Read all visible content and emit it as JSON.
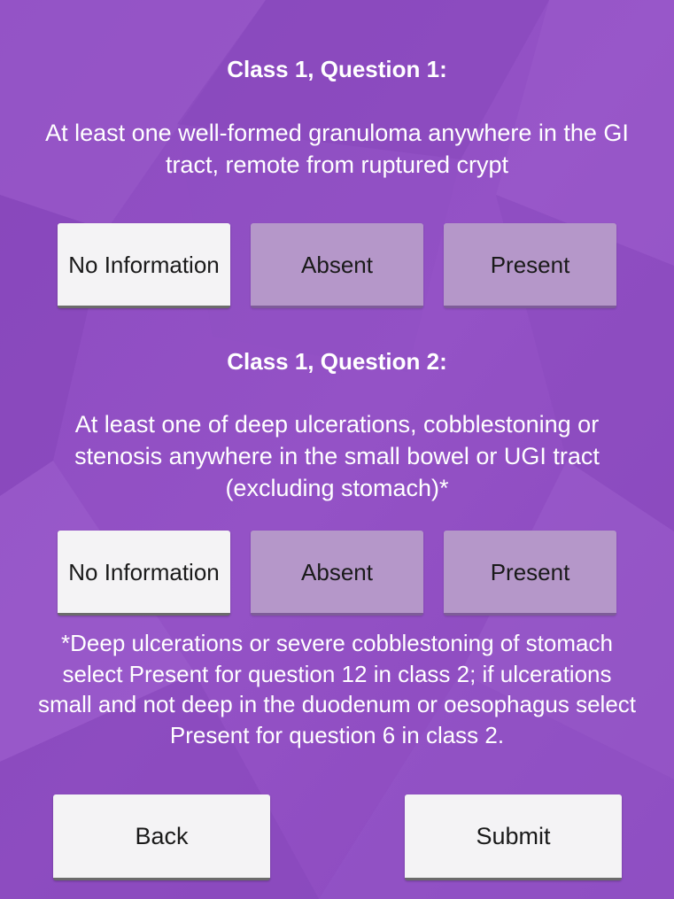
{
  "question1": {
    "title": "Class 1, Question 1:",
    "text": "At least one well-formed granuloma anywhere in the GI tract, remote from ruptured crypt",
    "options": {
      "no_information": "No Information",
      "absent": "Absent",
      "present": "Present"
    },
    "selected": "no_information"
  },
  "question2": {
    "title": "Class 1, Question 2:",
    "text": "At least one of deep ulcerations, cobblestoning or stenosis anywhere in the small bowel or UGI tract (excluding stomach)*",
    "options": {
      "no_information": "No Information",
      "absent": "Absent",
      "present": "Present"
    },
    "selected": "no_information"
  },
  "footnote": "*Deep ulcerations or severe cobblestoning of stomach select Present for question 12 in class 2; if ulcerations small and not deep in the duodenum or oesophagus select Present for question 6 in class 2.",
  "nav": {
    "back_label": "Back",
    "submit_label": "Submit"
  },
  "colors": {
    "background": "#8f4fc2",
    "button_selected": "#f4f3f5",
    "button_unselected": "#b597c9"
  }
}
